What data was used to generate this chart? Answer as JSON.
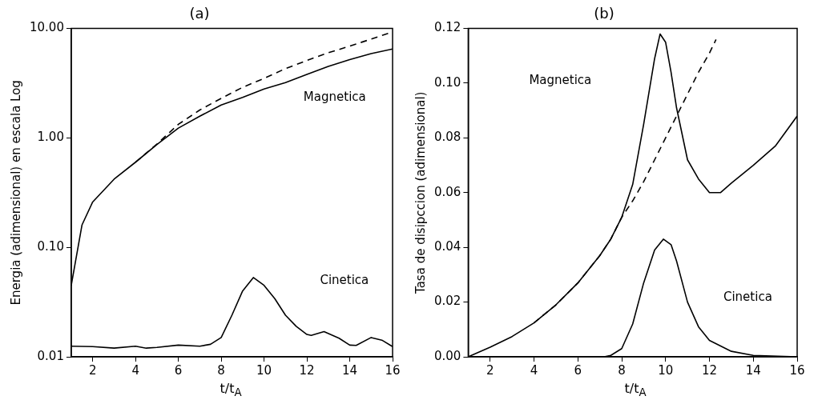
{
  "chart_data": [
    {
      "type": "line",
      "title": "(a)",
      "xlabel": "t/t$_{A}$",
      "ylabel": "Energia (adimensional) en escala Log",
      "log": "y",
      "grid": false,
      "xlim": [
        1,
        16
      ],
      "xticks": [
        2,
        4,
        6,
        8,
        10,
        12,
        14,
        16
      ],
      "ylim": [
        0.01,
        10
      ],
      "yticks": [
        {
          "value": 0.01,
          "label": "0.01"
        },
        {
          "value": 0.1,
          "label": "0.10"
        },
        {
          "value": 1,
          "label": "1.00"
        },
        {
          "value": 10,
          "label": "10.00"
        }
      ],
      "annotations": [
        "Magnetica",
        "Cinetica"
      ],
      "series": [
        {
          "color": "#000000",
          "x": [
            1,
            1.5,
            2,
            3,
            4,
            5,
            6,
            7,
            8,
            9,
            10,
            11,
            12,
            13,
            14,
            15,
            16
          ],
          "values": [
            0.045,
            0.16,
            0.26,
            0.42,
            0.6,
            0.87,
            1.23,
            1.58,
            2.0,
            2.35,
            2.8,
            3.2,
            3.8,
            4.5,
            5.2,
            5.9,
            6.5
          ]
        },
        {
          "color": "#000000",
          "line_style": "dashed",
          "x": [
            4,
            5,
            6,
            7,
            8,
            9,
            10,
            11,
            12,
            13,
            14,
            15,
            16
          ],
          "values": [
            0.6,
            0.88,
            1.33,
            1.8,
            2.3,
            2.9,
            3.5,
            4.3,
            5.1,
            6.0,
            6.9,
            8.0,
            9.3
          ]
        },
        {
          "color": "#000000",
          "x": [
            1,
            2,
            3,
            4,
            4.5,
            5,
            6,
            7,
            7.5,
            8,
            8.5,
            9,
            9.5,
            10,
            10.5,
            11,
            11.5,
            12,
            12.2,
            12.8,
            13.5,
            14,
            14.3,
            15,
            15.5,
            16
          ],
          "values": [
            0.0125,
            0.0124,
            0.012,
            0.0125,
            0.012,
            0.0122,
            0.0128,
            0.0125,
            0.013,
            0.015,
            0.024,
            0.04,
            0.053,
            0.045,
            0.034,
            0.024,
            0.019,
            0.016,
            0.0157,
            0.017,
            0.0148,
            0.0128,
            0.0127,
            0.015,
            0.0142,
            0.0124
          ]
        }
      ]
    },
    {
      "type": "line",
      "title": "(b)",
      "xlabel": "t/t$_{A}$",
      "ylabel": "Tasa de disipccion (adimensional)",
      "grid": false,
      "xlim": [
        1,
        16
      ],
      "xticks": [
        2,
        4,
        6,
        8,
        10,
        12,
        14,
        16
      ],
      "ylim": [
        0,
        0.12
      ],
      "yticks": [
        {
          "value": 0,
          "label": "0.00"
        },
        {
          "value": 0.02,
          "label": "0.02"
        },
        {
          "value": 0.04,
          "label": "0.04"
        },
        {
          "value": 0.06,
          "label": "0.06"
        },
        {
          "value": 0.08,
          "label": "0.08"
        },
        {
          "value": 0.1,
          "label": "0.10"
        },
        {
          "value": 0.12,
          "label": "0.12"
        }
      ],
      "annotations": [
        "Magnetica",
        "Cinetica"
      ],
      "series": [
        {
          "color": "#000000",
          "x": [
            1,
            2,
            3,
            4,
            5,
            6,
            7,
            7.5,
            8,
            8.5,
            9,
            9.5,
            9.75,
            10,
            10.25,
            10.5,
            11,
            11.5,
            12,
            12.5,
            13,
            14,
            15,
            16
          ],
          "values": [
            0,
            0.0035,
            0.0074,
            0.0124,
            0.019,
            0.027,
            0.037,
            0.043,
            0.051,
            0.063,
            0.085,
            0.109,
            0.118,
            0.115,
            0.104,
            0.091,
            0.072,
            0.065,
            0.06,
            0.06,
            0.0635,
            0.07,
            0.077,
            0.088
          ]
        },
        {
          "color": "#000000",
          "line_style": "dashed",
          "x": [
            4,
            5,
            6,
            7,
            7.5,
            8,
            8.5,
            9,
            9.5,
            10,
            10.5,
            11,
            11.5,
            12,
            12.3
          ],
          "values": [
            0.0124,
            0.019,
            0.027,
            0.037,
            0.043,
            0.051,
            0.057,
            0.064,
            0.072,
            0.08,
            0.088,
            0.096,
            0.104,
            0.111,
            0.116
          ]
        },
        {
          "color": "#000000",
          "x": [
            1,
            7.2,
            7.5,
            8,
            8.5,
            9,
            9.5,
            9.9,
            10.25,
            10.5,
            11,
            11.5,
            12,
            13,
            14,
            16
          ],
          "values": [
            0,
            0,
            0.0005,
            0.003,
            0.012,
            0.027,
            0.039,
            0.043,
            0.041,
            0.035,
            0.02,
            0.011,
            0.006,
            0.002,
            0.0005,
            0
          ]
        }
      ]
    }
  ]
}
